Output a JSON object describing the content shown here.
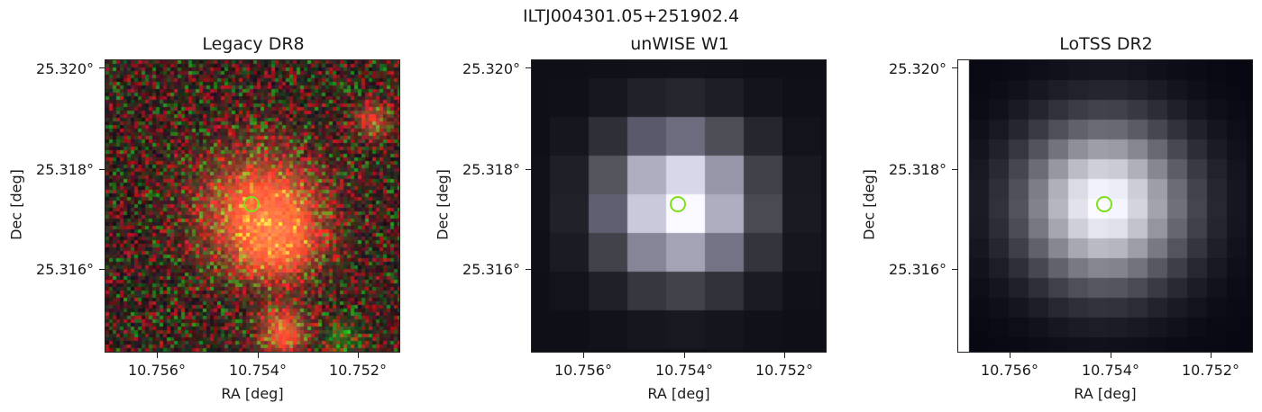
{
  "figure": {
    "suptitle": "ILTJ004301.05+251902.4",
    "panels": [
      {
        "title": "Legacy DR8",
        "xlabel": "RA [deg]",
        "ylabel": "Dec [deg]",
        "yticks": [
          "25.320°",
          "25.318°",
          "25.316°"
        ],
        "xticks": [
          "10.756°",
          "10.754°",
          "10.752°"
        ]
      },
      {
        "title": "unWISE W1",
        "xlabel": "RA [deg]",
        "ylabel": "Dec [deg]",
        "yticks": [
          "25.320°",
          "25.318°",
          "25.316°"
        ],
        "xticks": [
          "10.756°",
          "10.754°",
          "10.752°"
        ]
      },
      {
        "title": "LoTSS DR2",
        "xlabel": "RA [deg]",
        "ylabel": "Dec [deg]",
        "yticks": [
          "25.320°",
          "25.318°",
          "25.316°"
        ],
        "xticks": [
          "10.756°",
          "10.754°",
          "10.752°"
        ]
      }
    ],
    "marker_color": "#7fe01a"
  }
}
